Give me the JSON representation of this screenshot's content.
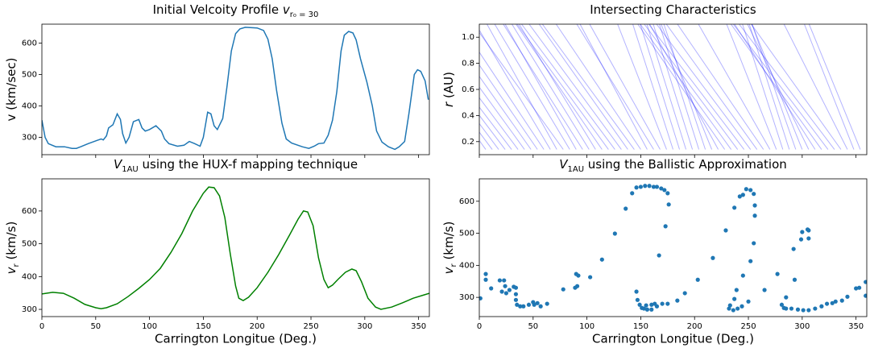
{
  "chart_data": [
    {
      "type": "line",
      "title": [
        {
          "text": "Initial Velcoity Profile "
        },
        {
          "italic": "v"
        },
        {
          "sub": "r₀ = 30"
        }
      ],
      "ylabel": [
        {
          "text": "v (km/sec)"
        }
      ],
      "color": "#1f77b4",
      "xlim": [
        0,
        360
      ],
      "xticks": [
        0,
        50,
        100,
        150,
        200,
        250,
        300,
        350
      ],
      "xtick_labels": false,
      "ylim": [
        245,
        660
      ],
      "yticks": [
        300,
        400,
        500,
        600
      ],
      "x": [
        0,
        3,
        6,
        13,
        21,
        28,
        32,
        36,
        43,
        51,
        55,
        57,
        60,
        62,
        66,
        70,
        73,
        75,
        78,
        81,
        85,
        90,
        93,
        96,
        100,
        106,
        111,
        114,
        118,
        126,
        132,
        137,
        142,
        147,
        150,
        154,
        157,
        160,
        163,
        168,
        172,
        176,
        180,
        184,
        189,
        200,
        206,
        210,
        214,
        218,
        223,
        227,
        232,
        242,
        248,
        253,
        257,
        262,
        266,
        270,
        274,
        278,
        281,
        285,
        289,
        292,
        296,
        302,
        307,
        311,
        316,
        322,
        328,
        332,
        337,
        341,
        346,
        349,
        352,
        356,
        359
      ],
      "values": [
        355,
        300,
        280,
        270,
        270,
        265,
        265,
        270,
        280,
        290,
        295,
        292,
        305,
        330,
        340,
        375,
        357,
        312,
        282,
        300,
        350,
        357,
        330,
        320,
        325,
        337,
        320,
        295,
        280,
        272,
        275,
        287,
        280,
        272,
        300,
        380,
        375,
        337,
        325,
        360,
        462,
        575,
        630,
        645,
        650,
        648,
        640,
        612,
        550,
        450,
        345,
        295,
        282,
        270,
        265,
        272,
        280,
        282,
        307,
        355,
        445,
        575,
        625,
        637,
        632,
        610,
        550,
        475,
        400,
        320,
        285,
        270,
        262,
        270,
        287,
        375,
        500,
        515,
        510,
        480,
        420
      ]
    },
    {
      "type": "lines",
      "title": [
        {
          "text": "Intersecting Characteristics"
        }
      ],
      "ylabel": [
        {
          "italic": "r"
        },
        {
          "text": " (AU)"
        }
      ],
      "color": "#0000ff",
      "alpha": 0.3,
      "xlim": [
        0,
        360
      ],
      "xticks": [
        0,
        50,
        100,
        150,
        200,
        250,
        300,
        350
      ],
      "xtick_labels": false,
      "ylim": [
        0.1,
        1.1
      ],
      "yticks": [
        0.2,
        0.4,
        0.6,
        0.8,
        {
          "value": 1,
          "label": "1.0"
        }
      ],
      "r_start": 0.14,
      "r_end": 1.1,
      "x_start": [
        0,
        6,
        12,
        18,
        24,
        30,
        36,
        42,
        48,
        54,
        60,
        66,
        72,
        78,
        84,
        90,
        96,
        102,
        108,
        114,
        120,
        126,
        132,
        138,
        144,
        150,
        156,
        162,
        168,
        174,
        180,
        186,
        192,
        198,
        204,
        210,
        216,
        222,
        228,
        234,
        240,
        246,
        252,
        258,
        264,
        270,
        276,
        282,
        288,
        294,
        300,
        306,
        312,
        318,
        324,
        330,
        336,
        342,
        348,
        354
      ],
      "x_end": [
        -66.4,
        -78.2,
        -75.3,
        -69.3,
        -64.3,
        -59,
        -51.3,
        -42.5,
        -34.4,
        -26.2,
        -17.3,
        -3.3,
        7.1,
        -5.6,
        14.3,
        24,
        22.3,
        30.3,
        37,
        34.1,
        35.2,
        39.3,
        46.3,
        55.6,
        58.6,
        71.4,
        93.6,
        90.6,
        102.5,
        128.5,
        142.6,
        149.6,
        155.7,
        161.6,
        167.3,
        171.5,
        168.9,
        158.3,
        147.3,
        149.5,
        153.3,
        157.4,
        164.7,
        173.8,
        184.1,
        203.6,
        229.8,
        244.5,
        250.8,
        253.4,
        253.3,
        249.2,
        237.2,
        233.8,
        236,
        241.4,
        252.7,
        283.1,
        302,
        306.4
      ]
    },
    {
      "type": "line",
      "title": [
        {
          "italic": "V"
        },
        {
          "sub": "1AU"
        },
        {
          "text": " using the HUX-f mapping technique"
        }
      ],
      "ylabel": [
        {
          "italic": "v"
        },
        {
          "sub": "r"
        },
        {
          "text": " (km/s)"
        }
      ],
      "xlabel": "Carrington Longitue (Deg.)",
      "color": "#008000",
      "xlim": [
        0,
        360
      ],
      "xticks": [
        0,
        50,
        100,
        150,
        200,
        250,
        300,
        350
      ],
      "ylim": [
        278,
        698
      ],
      "yticks": [
        300,
        400,
        500,
        600
      ],
      "x": [
        0,
        10,
        20,
        30,
        40,
        50,
        55,
        60,
        70,
        80,
        90,
        100,
        110,
        120,
        130,
        140,
        150,
        155,
        160,
        165,
        170,
        175,
        180,
        183,
        187,
        192,
        200,
        210,
        220,
        230,
        238,
        243,
        247,
        252,
        257,
        262,
        266,
        270,
        275,
        282,
        288,
        292,
        297,
        303,
        310,
        315,
        325,
        335,
        345,
        355,
        360
      ],
      "values": [
        347,
        352,
        349,
        334,
        315,
        305,
        302,
        305,
        317,
        339,
        364,
        391,
        425,
        474,
        531,
        600,
        654,
        673,
        671,
        646,
        580,
        470,
        371,
        334,
        327,
        337,
        366,
        413,
        467,
        526,
        575,
        600,
        597,
        555,
        457,
        391,
        366,
        374,
        391,
        413,
        423,
        418,
        384,
        334,
        307,
        300,
        307,
        320,
        334,
        344,
        349
      ]
    },
    {
      "type": "scatter",
      "title": [
        {
          "italic": "V"
        },
        {
          "sub": "1AU"
        },
        {
          "text": " using the Ballistic Approximation"
        }
      ],
      "ylabel": [
        {
          "italic": "v"
        },
        {
          "sub": "r"
        },
        {
          "text": " (km/s)"
        }
      ],
      "xlabel": "Carrington Longitue (Deg.)",
      "color": "#1f77b4",
      "xlim": [
        0,
        360
      ],
      "xticks": [
        0,
        50,
        100,
        150,
        200,
        250,
        300,
        350
      ],
      "ylim": [
        240,
        670
      ],
      "yticks": [
        300,
        400,
        500,
        600
      ],
      "x": [
        1,
        6,
        6,
        11,
        19,
        23,
        24,
        21,
        25,
        28,
        32,
        34,
        34,
        34,
        35,
        38,
        41,
        46,
        50,
        51,
        54,
        57,
        63,
        78,
        89,
        90,
        92,
        91,
        103,
        114,
        126,
        136,
        142,
        146,
        150,
        154,
        158,
        162,
        165,
        169,
        172,
        175,
        176,
        173,
        167,
        163,
        160,
        155,
        153,
        151,
        149,
        147,
        146,
        156,
        160,
        165,
        170,
        175,
        184,
        191,
        203,
        217,
        229,
        237,
        242,
        245,
        248,
        252,
        255,
        256,
        256,
        255,
        252,
        245,
        239,
        237,
        233,
        232,
        236,
        240,
        244,
        250,
        265,
        277,
        281,
        283,
        285,
        285,
        290,
        296,
        301,
        306,
        293,
        292,
        299,
        300,
        305,
        306,
        306,
        312,
        318,
        323,
        328,
        331,
        337,
        342,
        350,
        353,
        359,
        359
      ],
      "values": [
        297,
        373,
        355,
        328,
        353,
        353,
        335,
        318,
        313,
        323,
        333,
        330,
        310,
        292,
        277,
        272,
        272,
        277,
        285,
        277,
        282,
        272,
        280,
        325,
        330,
        373,
        368,
        335,
        363,
        418,
        499,
        577,
        625,
        643,
        645,
        648,
        648,
        645,
        645,
        640,
        635,
        625,
        590,
        522,
        431,
        280,
        277,
        275,
        265,
        267,
        277,
        292,
        318,
        262,
        262,
        272,
        280,
        280,
        290,
        313,
        355,
        423,
        509,
        580,
        615,
        620,
        638,
        635,
        623,
        587,
        555,
        469,
        413,
        368,
        323,
        295,
        275,
        265,
        260,
        265,
        272,
        287,
        323,
        373,
        277,
        267,
        300,
        265,
        265,
        262,
        260,
        260,
        355,
        451,
        481,
        504,
        512,
        509,
        484,
        265,
        272,
        280,
        282,
        287,
        290,
        302,
        328,
        330,
        305,
        348
      ]
    }
  ]
}
